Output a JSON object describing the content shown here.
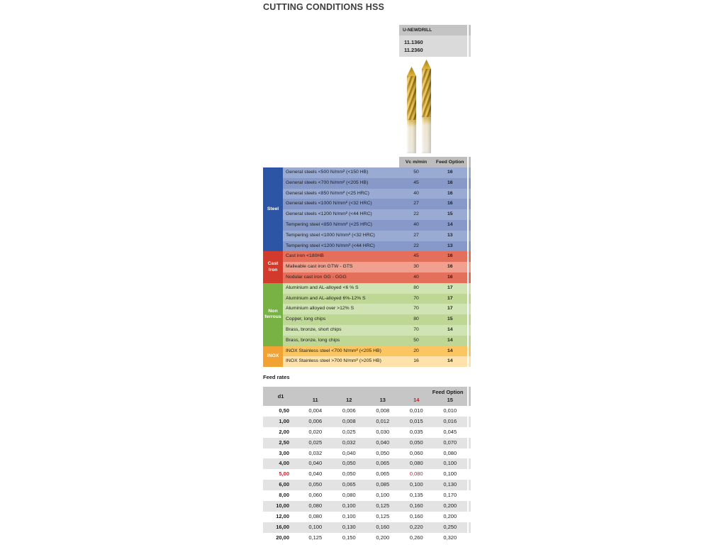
{
  "page": {
    "title": "CUTTING CONDITIONS HSS",
    "feed_rates_label": "Feed rates"
  },
  "colors": {
    "accent_red": "#c41f24",
    "band_gray": "#c4c4c4",
    "codes_gray": "#dadada",
    "vc_header_gray": "#bdbdbd",
    "feed_header_gray": "#c6c6c6",
    "row_alt_gray": "#e3e3e3"
  },
  "product": {
    "name": "U-NEWDRILL",
    "codes": [
      "11.1360",
      "11.2360"
    ],
    "vc_header": "Vc m/min",
    "feed_header": "Feed Option"
  },
  "materials": {
    "groups": [
      {
        "label": "Steel",
        "color": "#2c56a5",
        "row_colors": [
          "#9aabd3",
          "#8799c8"
        ],
        "rows": [
          {
            "desc": "General steels <500 N/mm²  (<150 HB)",
            "vc": "50",
            "feed": "16"
          },
          {
            "desc": "General steels <700 N/mm²  (<205 HB)",
            "vc": "45",
            "feed": "16"
          },
          {
            "desc": "General steels <850 N/mm² (<25 HRC)",
            "vc": "40",
            "feed": "16"
          },
          {
            "desc": "General steels <1000 N/mm² (<32 HRC)",
            "vc": "27",
            "feed": "16"
          },
          {
            "desc": "General steels <1200 N/mm²  (<44 HRC)",
            "vc": "22",
            "feed": "15"
          },
          {
            "desc": "Tempering steel  <850 N/mm²  (<25 HRC)",
            "vc": "40",
            "feed": "14"
          },
          {
            "desc": "Tempering steel  <1000 N/mm²  (<32 HRC)",
            "vc": "27",
            "feed": "13"
          },
          {
            "desc": "Tempering steel  <1200 N/mm²  (<44 HRC)",
            "vc": "22",
            "feed": "13"
          }
        ]
      },
      {
        "label": "Cast Iron",
        "color": "#d23a2b",
        "row_colors": [
          "#e4705c",
          "#efa08e"
        ],
        "rows": [
          {
            "desc": "Cast iron <180HB",
            "vc": "45",
            "feed": "16"
          },
          {
            "desc": "Malleable cast iron GTW - GTS",
            "vc": "30",
            "feed": "16"
          },
          {
            "desc": "Nodular cast iron  GG - GGG",
            "vc": "40",
            "feed": "16"
          }
        ]
      },
      {
        "label": "Non ferrous",
        "color": "#79b244",
        "row_colors": [
          "#cfe3b3",
          "#bed795"
        ],
        "rows": [
          {
            "desc": "Aluminium and AL-alloyed   <6 % S",
            "vc": "80",
            "feed": "17"
          },
          {
            "desc": "Aluminium and AL-alloyed 6%-12% S",
            "vc": "70",
            "feed": "17"
          },
          {
            "desc": "Aluminium alloyed over   >12% S",
            "vc": "70",
            "feed": "17"
          },
          {
            "desc": "Copper, long chips",
            "vc": "80",
            "feed": "15"
          },
          {
            "desc": "Brass, bronze, short chips",
            "vc": "70",
            "feed": "14"
          },
          {
            "desc": "Brass, bronze, long chips",
            "vc": "50",
            "feed": "14"
          }
        ]
      },
      {
        "label": "INOX",
        "color": "#f2a233",
        "row_colors": [
          "#fbc661",
          "#fde3ab"
        ],
        "rows": [
          {
            "desc": "INOX Stainless steel  <700 N/mm² (<205 HB)",
            "vc": "20",
            "feed": "14"
          },
          {
            "desc": "INOX Stainless steel  >700 N/mm² (>205 HB)",
            "vc": "16",
            "feed": "14"
          }
        ]
      }
    ]
  },
  "feed_rates": {
    "d1_header": "d1",
    "span_header": "Feed Option",
    "options": [
      "11",
      "12",
      "13",
      "14",
      "15"
    ],
    "highlight_option": "14",
    "rows": [
      {
        "d1": "0,50",
        "values": [
          "0,004",
          "0,006",
          "0,008",
          "0,010",
          "0,010"
        ]
      },
      {
        "d1": "1,00",
        "values": [
          "0,006",
          "0,008",
          "0,012",
          "0,015",
          "0,016"
        ]
      },
      {
        "d1": "2,00",
        "values": [
          "0,020",
          "0,025",
          "0,030",
          "0,035",
          "0,045"
        ]
      },
      {
        "d1": "2,50",
        "values": [
          "0,025",
          "0,032",
          "0,040",
          "0,050",
          "0,070"
        ]
      },
      {
        "d1": "3,00",
        "values": [
          "0,032",
          "0,040",
          "0,050",
          "0,060",
          "0,080"
        ]
      },
      {
        "d1": "4,00",
        "values": [
          "0,040",
          "0,050",
          "0,065",
          "0,080",
          "0,100"
        ]
      },
      {
        "d1": "5,00",
        "values": [
          "0,040",
          "0,050",
          "0,065",
          "0,080",
          "0,100"
        ],
        "highlight": true
      },
      {
        "d1": "6,00",
        "values": [
          "0,050",
          "0,065",
          "0,085",
          "0,100",
          "0,130"
        ]
      },
      {
        "d1": "8,00",
        "values": [
          "0,060",
          "0,080",
          "0,100",
          "0,135",
          "0,170"
        ]
      },
      {
        "d1": "10,00",
        "values": [
          "0,080",
          "0,100",
          "0,125",
          "0,160",
          "0,200"
        ]
      },
      {
        "d1": "12,00",
        "values": [
          "0,080",
          "0,100",
          "0,125",
          "0,160",
          "0,200"
        ]
      },
      {
        "d1": "16,00",
        "values": [
          "0,100",
          "0,130",
          "0,160",
          "0,220",
          "0,250"
        ]
      },
      {
        "d1": "20,00",
        "values": [
          "0,125",
          "0,150",
          "0,200",
          "0,260",
          "0,320"
        ]
      }
    ]
  }
}
